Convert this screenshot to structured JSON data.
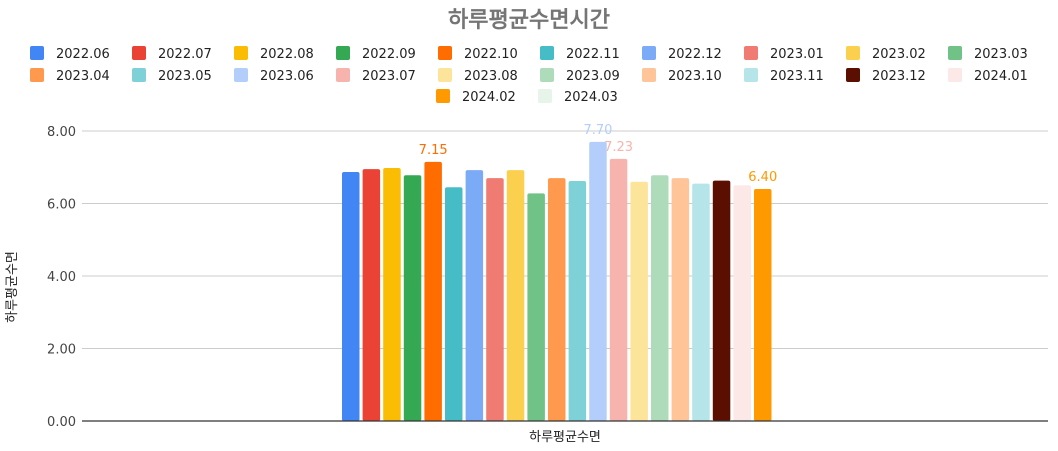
{
  "chart_data": {
    "type": "bar",
    "title": "하루평균수면시간",
    "xlabel": "하루평균수면",
    "ylabel": "하루평균수면",
    "categories": [
      "하루평균수면"
    ],
    "ylim": [
      0,
      8
    ],
    "yticks": [
      "0.00",
      "2.00",
      "4.00",
      "6.00",
      "8.00"
    ],
    "grid": true,
    "legend_position": "top",
    "series": [
      {
        "name": "2022.06",
        "values": [
          6.87
        ],
        "color": "#4285F4"
      },
      {
        "name": "2022.07",
        "values": [
          6.95
        ],
        "color": "#EA4335"
      },
      {
        "name": "2022.08",
        "values": [
          6.98
        ],
        "color": "#FBBC04"
      },
      {
        "name": "2022.09",
        "values": [
          6.78
        ],
        "color": "#34A853"
      },
      {
        "name": "2022.10",
        "values": [
          7.15
        ],
        "color": "#FF6D01",
        "label": "7.15"
      },
      {
        "name": "2022.11",
        "values": [
          6.45
        ],
        "color": "#46BDC6"
      },
      {
        "name": "2022.12",
        "values": [
          6.92
        ],
        "color": "#7BAAF7"
      },
      {
        "name": "2023.01",
        "values": [
          6.7
        ],
        "color": "#F07B72"
      },
      {
        "name": "2023.02",
        "values": [
          6.92
        ],
        "color": "#FCD04F"
      },
      {
        "name": "2023.03",
        "values": [
          6.28
        ],
        "color": "#71C287"
      },
      {
        "name": "2023.04",
        "values": [
          6.7
        ],
        "color": "#FF994D"
      },
      {
        "name": "2023.05",
        "values": [
          6.62
        ],
        "color": "#7ED1D7"
      },
      {
        "name": "2023.06",
        "values": [
          7.7
        ],
        "color": "#B3CEFB",
        "label": "7.70"
      },
      {
        "name": "2023.07",
        "values": [
          7.23
        ],
        "color": "#F7B4AE",
        "label": "7.23"
      },
      {
        "name": "2023.08",
        "values": [
          6.6
        ],
        "color": "#FDE49B"
      },
      {
        "name": "2023.09",
        "values": [
          6.78
        ],
        "color": "#AEDCBA"
      },
      {
        "name": "2023.10",
        "values": [
          6.7
        ],
        "color": "#FFC599"
      },
      {
        "name": "2023.11",
        "values": [
          6.55
        ],
        "color": "#B5E5E8"
      },
      {
        "name": "2023.12",
        "values": [
          6.63
        ],
        "color": "#5B0F00"
      },
      {
        "name": "2024.01",
        "values": [
          6.5
        ],
        "color": "#FCE8E6"
      },
      {
        "name": "2024.02",
        "values": [
          6.4
        ],
        "color": "#FF9900",
        "label": "6.40"
      },
      {
        "name": "2024.03",
        "values": [
          null
        ],
        "color": "#E6F4EA"
      }
    ]
  }
}
